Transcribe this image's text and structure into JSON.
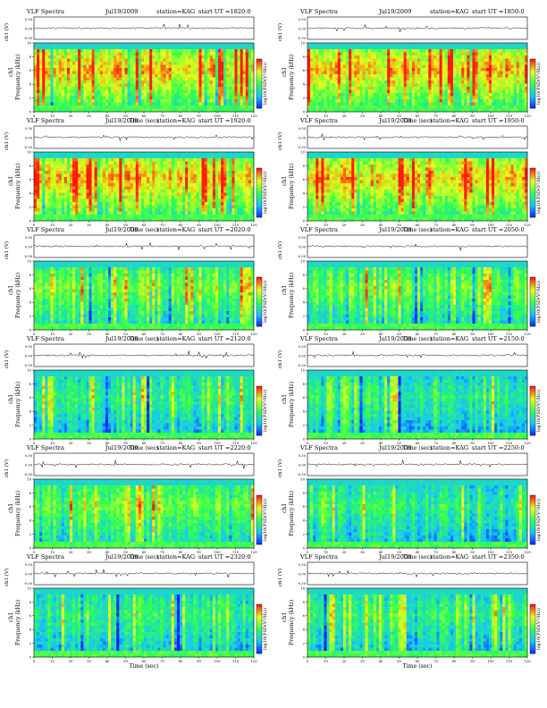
{
  "figure": {
    "layout": "6 rows x 2 columns of spectrogram panels"
  },
  "chart_data": [
    {
      "type": "heatmap",
      "title": "VLF Spectra",
      "date": "Jul19/2009",
      "station": "station=KAG",
      "start": "start  UT  =1820:0",
      "xlabel": "Time  (sec)",
      "ylabel": "Frequency  (kHz)",
      "channel_label": "ch1",
      "amp_label": "ch1 (V)",
      "amp_ticks": [
        "0.50",
        "0.00",
        "-0.50"
      ],
      "colorbar_label": "log10(PSD(V²/Hz))",
      "colors": [
        "#0a1cff",
        "#16c4ff",
        "#2fff50",
        "#e8ff1a",
        "#ff1a10"
      ],
      "intensity_level": "high",
      "x_ticks": [
        0,
        10,
        20,
        30,
        40,
        50,
        60,
        70,
        80,
        90,
        100,
        110,
        120
      ],
      "y_ticks": [
        0,
        2,
        4,
        6,
        8,
        10
      ],
      "xlim": [
        0,
        120
      ],
      "ylim": [
        0,
        10
      ]
    },
    {
      "type": "heatmap",
      "title": "VLF Spectra",
      "date": "Jul19/2009",
      "station": "station=KAG",
      "start": "start  UT  =1850:0",
      "xlabel": "Time  (sec)",
      "ylabel": "Frequency  (kHz)",
      "channel_label": "ch1",
      "amp_label": "ch1 (V)",
      "amp_ticks": [
        "0.50",
        "0.00",
        "-0.50"
      ],
      "colorbar_label": "log10(PSD(V²/Hz))",
      "colors": [
        "#0a1cff",
        "#16c4ff",
        "#2fff50",
        "#e8ff1a",
        "#ff1a10"
      ],
      "intensity_level": "high",
      "x_ticks": [
        0,
        10,
        20,
        30,
        40,
        50,
        60,
        70,
        80,
        90,
        100,
        110,
        120
      ],
      "y_ticks": [
        0,
        2,
        4,
        6,
        8,
        10
      ],
      "xlim": [
        0,
        120
      ],
      "ylim": [
        0,
        10
      ]
    },
    {
      "type": "heatmap",
      "title": "VLF Spectra",
      "date": "Jul19/2009",
      "station": "station=KAG",
      "start": "start  UT  =1920:0",
      "xlabel": "Time  (sec)",
      "ylabel": "Frequency  (kHz)",
      "channel_label": "ch1",
      "amp_label": "ch1 (V)",
      "amp_ticks": [
        "0.50",
        "0.00",
        "-0.50"
      ],
      "colorbar_label": "log10(PSD(V²/Hz))",
      "colors": [
        "#0a1cff",
        "#16c4ff",
        "#2fff50",
        "#e8ff1a",
        "#ff1a10"
      ],
      "intensity_level": "high",
      "x_ticks": [
        0,
        10,
        20,
        30,
        40,
        50,
        60,
        70,
        80,
        90,
        100,
        110,
        120
      ],
      "y_ticks": [
        0,
        2,
        4,
        6,
        8,
        10
      ],
      "xlim": [
        0,
        120
      ],
      "ylim": [
        0,
        10
      ]
    },
    {
      "type": "heatmap",
      "title": "VLF Spectra",
      "date": "Jul19/2009",
      "station": "station=KAG",
      "start": "start  UT  =1950:0",
      "xlabel": "Time  (sec)",
      "ylabel": "Frequency  (kHz)",
      "channel_label": "ch1",
      "amp_label": "ch1 (V)",
      "amp_ticks": [
        "0.50",
        "0.00",
        "-0.50"
      ],
      "colorbar_label": "log10(PSD(V²/Hz))",
      "colors": [
        "#0a1cff",
        "#16c4ff",
        "#2fff50",
        "#e8ff1a",
        "#ff1a10"
      ],
      "intensity_level": "high",
      "x_ticks": [
        0,
        10,
        20,
        30,
        40,
        50,
        60,
        70,
        80,
        90,
        100,
        110,
        120
      ],
      "y_ticks": [
        0,
        2,
        4,
        6,
        8,
        10
      ],
      "xlim": [
        0,
        120
      ],
      "ylim": [
        0,
        10
      ]
    },
    {
      "type": "heatmap",
      "title": "VLF Spectra",
      "date": "Jul19/2009",
      "station": "station=KAG",
      "start": "start  UT  =2020:0",
      "xlabel": "Time  (sec)",
      "ylabel": "Frequency  (kHz)",
      "channel_label": "ch1",
      "amp_label": "ch1 (V)",
      "amp_ticks": [
        "0.50",
        "0.00",
        "-0.50"
      ],
      "colorbar_label": "log10(PSD(V²/Hz))",
      "colors": [
        "#0a1cff",
        "#16c4ff",
        "#2fff50",
        "#e8ff1a",
        "#ff1a10"
      ],
      "intensity_level": "medium",
      "x_ticks": [
        0,
        10,
        20,
        30,
        40,
        50,
        60,
        70,
        80,
        90,
        100,
        110,
        120
      ],
      "y_ticks": [
        0,
        2,
        4,
        6,
        8,
        10
      ],
      "xlim": [
        0,
        120
      ],
      "ylim": [
        0,
        10
      ]
    },
    {
      "type": "heatmap",
      "title": "VLF Spectra",
      "date": "Jul19/2009",
      "station": "station=KAG",
      "start": "start  UT  =2050:0",
      "xlabel": "Time  (sec)",
      "ylabel": "Frequency  (kHz)",
      "channel_label": "ch1",
      "amp_label": "ch1 (V)",
      "amp_ticks": [
        "0.50",
        "0.00",
        "-0.50"
      ],
      "colorbar_label": "log10(PSD(V²/Hz))",
      "colors": [
        "#0a1cff",
        "#16c4ff",
        "#2fff50",
        "#e8ff1a",
        "#ff1a10"
      ],
      "intensity_level": "medium",
      "x_ticks": [
        0,
        10,
        20,
        30,
        40,
        50,
        60,
        70,
        80,
        90,
        100,
        110,
        120
      ],
      "y_ticks": [
        0,
        2,
        4,
        6,
        8,
        10
      ],
      "xlim": [
        0,
        120
      ],
      "ylim": [
        0,
        10
      ]
    },
    {
      "type": "heatmap",
      "title": "VLF Spectra",
      "date": "Jul19/2009",
      "station": "station=KAG",
      "start": "start  UT  =2120:0",
      "xlabel": "Time  (sec)",
      "ylabel": "Frequency  (kHz)",
      "channel_label": "ch1",
      "amp_label": "ch1 (V)",
      "amp_ticks": [
        "0.50",
        "0.00",
        "-0.50"
      ],
      "colorbar_label": "log10(PSD(V²/Hz))",
      "colors": [
        "#0a1cff",
        "#16c4ff",
        "#2fff50",
        "#e8ff1a",
        "#ff1a10"
      ],
      "intensity_level": "low",
      "x_ticks": [
        0,
        10,
        20,
        30,
        40,
        50,
        60,
        70,
        80,
        90,
        100,
        110,
        120
      ],
      "y_ticks": [
        0,
        2,
        4,
        6,
        8,
        10
      ],
      "xlim": [
        0,
        120
      ],
      "ylim": [
        0,
        10
      ]
    },
    {
      "type": "heatmap",
      "title": "VLF Spectra",
      "date": "Jul19/2009",
      "station": "station=KAG",
      "start": "start  UT  =2150:0",
      "xlabel": "Time  (sec)",
      "ylabel": "Frequency  (kHz)",
      "channel_label": "ch1",
      "amp_label": "ch1 (V)",
      "amp_ticks": [
        "0.50",
        "0.00",
        "-0.50"
      ],
      "colorbar_label": "log10(PSD(V²/Hz))",
      "colors": [
        "#0a1cff",
        "#16c4ff",
        "#2fff50",
        "#e8ff1a",
        "#ff1a10"
      ],
      "intensity_level": "low",
      "x_ticks": [
        0,
        10,
        20,
        30,
        40,
        50,
        60,
        70,
        80,
        90,
        100,
        110,
        120
      ],
      "y_ticks": [
        0,
        2,
        4,
        6,
        8,
        10
      ],
      "xlim": [
        0,
        120
      ],
      "ylim": [
        0,
        10
      ]
    },
    {
      "type": "heatmap",
      "title": "VLF Spectra",
      "date": "Jul19/2009",
      "station": "station=KAG",
      "start": "start  UT  =2220:0",
      "xlabel": "Time  (sec)",
      "ylabel": "Frequency  (kHz)",
      "channel_label": "ch1",
      "amp_label": "ch1 (V)",
      "amp_ticks": [
        "0.50",
        "0.00",
        "-0.50"
      ],
      "colorbar_label": "log10(PSD(V²/Hz))",
      "colors": [
        "#0a1cff",
        "#16c4ff",
        "#2fff50",
        "#e8ff1a",
        "#ff1a10"
      ],
      "intensity_level": "medium",
      "x_ticks": [
        0,
        10,
        20,
        30,
        40,
        50,
        60,
        70,
        80,
        90,
        100,
        110,
        120
      ],
      "y_ticks": [
        0,
        2,
        4,
        6,
        8,
        10
      ],
      "xlim": [
        0,
        120
      ],
      "ylim": [
        0,
        10
      ]
    },
    {
      "type": "heatmap",
      "title": "VLF Spectra",
      "date": "Jul19/2009",
      "station": "station=KAG",
      "start": "start  UT  =2250:0",
      "xlabel": "Time  (sec)",
      "ylabel": "Frequency  (kHz)",
      "channel_label": "ch1",
      "amp_label": "ch1 (V)",
      "amp_ticks": [
        "0.50",
        "0.00",
        "-0.50"
      ],
      "colorbar_label": "log10(PSD(V²/Hz))",
      "colors": [
        "#0a1cff",
        "#16c4ff",
        "#2fff50",
        "#e8ff1a",
        "#ff1a10"
      ],
      "intensity_level": "low",
      "x_ticks": [
        0,
        10,
        20,
        30,
        40,
        50,
        60,
        70,
        80,
        90,
        100,
        110,
        120
      ],
      "y_ticks": [
        0,
        2,
        4,
        6,
        8,
        10
      ],
      "xlim": [
        0,
        120
      ],
      "ylim": [
        0,
        10
      ]
    },
    {
      "type": "heatmap",
      "title": "VLF Spectra",
      "date": "Jul19/2009",
      "station": "station=KAG",
      "start": "start  UT  =2320:0",
      "xlabel": "Time  (sec)",
      "ylabel": "Frequency  (kHz)",
      "channel_label": "ch1",
      "amp_label": "ch1 (V)",
      "amp_ticks": [
        "0.50",
        "0.00",
        "-0.50"
      ],
      "colorbar_label": "log10(PSD(V²/Hz))",
      "colors": [
        "#0a1cff",
        "#16c4ff",
        "#2fff50",
        "#e8ff1a",
        "#ff1a10"
      ],
      "intensity_level": "low",
      "x_ticks": [
        0,
        10,
        20,
        30,
        40,
        50,
        60,
        70,
        80,
        90,
        100,
        110,
        120
      ],
      "y_ticks": [
        0,
        2,
        4,
        6,
        8,
        10
      ],
      "xlim": [
        0,
        120
      ],
      "ylim": [
        0,
        10
      ]
    },
    {
      "type": "heatmap",
      "title": "VLF Spectra",
      "date": "Jul19/2009",
      "station": "station=KAG",
      "start": "start  UT  =2350:0",
      "xlabel": "Time  (sec)",
      "ylabel": "Frequency  (kHz)",
      "channel_label": "ch1",
      "amp_label": "ch1 (V)",
      "amp_ticks": [
        "0.50",
        "0.00",
        "-0.50"
      ],
      "colorbar_label": "log10(PSD(V²/Hz))",
      "colors": [
        "#0a1cff",
        "#16c4ff",
        "#2fff50",
        "#e8ff1a",
        "#ff1a10"
      ],
      "intensity_level": "low",
      "x_ticks": [
        0,
        10,
        20,
        30,
        40,
        50,
        60,
        70,
        80,
        90,
        100,
        110,
        120
      ],
      "y_ticks": [
        0,
        2,
        4,
        6,
        8,
        10
      ],
      "xlim": [
        0,
        120
      ],
      "ylim": [
        0,
        10
      ]
    }
  ]
}
